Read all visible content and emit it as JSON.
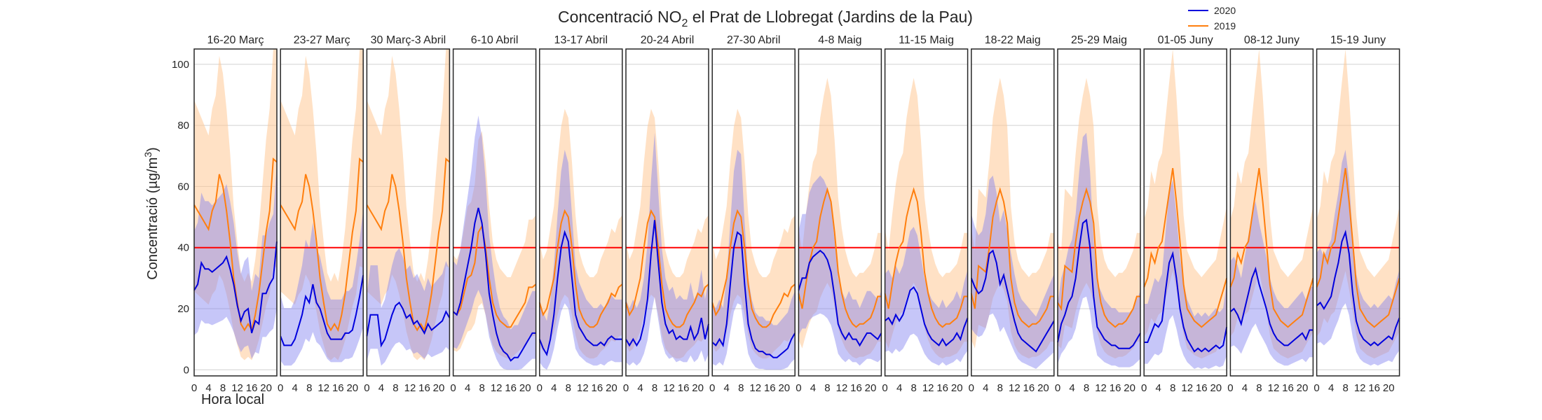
{
  "chart_data": {
    "type": "line",
    "title": "Concentració NO",
    "title_sub": "2",
    "title_rest": " el Prat de Llobregat (Jardins de la Pau)",
    "ylabel": "Concentració (µg/m",
    "ylabel_sup": "3",
    "ylabel_close": ")",
    "xlabel": "Hora local",
    "ylim": [
      -2,
      105
    ],
    "xlim": [
      0,
      23
    ],
    "yticks": [
      0,
      20,
      40,
      60,
      80,
      100
    ],
    "xticks": [
      0,
      4,
      8,
      12,
      16,
      20
    ],
    "xtick_labels": [
      "0",
      "4",
      "8",
      "12",
      "16",
      "20"
    ],
    "limit_value": 40,
    "limit_color": "#ff0000",
    "grid": true,
    "legend_position": "top-right",
    "series": [
      {
        "name": "2020",
        "color": "#0000dd",
        "band_color": "#8080f0"
      },
      {
        "name": "2019",
        "color": "#ff7f0e",
        "band_color": "#ffc896"
      }
    ],
    "panels": [
      {
        "title": "16-20 Març",
        "y2020": [
          26,
          28,
          35,
          33,
          33,
          32,
          33,
          34,
          35,
          37,
          33,
          28,
          21,
          16,
          19,
          20,
          12,
          16,
          15,
          25,
          25,
          28,
          30,
          42
        ],
        "y2019": [
          54,
          52,
          50,
          48,
          46,
          52,
          55,
          64,
          60,
          52,
          42,
          30,
          22,
          15,
          13,
          15,
          13,
          18,
          25,
          35,
          45,
          52,
          69,
          68
        ]
      },
      {
        "title": "23-27 Març",
        "y2020": [
          11,
          8,
          8,
          8,
          10,
          14,
          18,
          24,
          22,
          28,
          22,
          20,
          16,
          12,
          10,
          10,
          10,
          10,
          12,
          12,
          13,
          18,
          24,
          31
        ],
        "y2019": [
          54,
          52,
          50,
          48,
          46,
          52,
          55,
          64,
          60,
          52,
          42,
          30,
          22,
          15,
          13,
          15,
          13,
          18,
          25,
          35,
          45,
          52,
          69,
          68
        ]
      },
      {
        "title": "30 Març-3 Abril",
        "y2020": [
          11,
          18,
          18,
          18,
          8,
          10,
          14,
          18,
          21,
          22,
          20,
          17,
          18,
          15,
          16,
          14,
          12,
          15,
          13,
          14,
          15,
          16,
          19,
          17
        ],
        "y2019": [
          54,
          52,
          50,
          48,
          46,
          52,
          55,
          64,
          60,
          52,
          42,
          30,
          22,
          15,
          13,
          15,
          13,
          18,
          25,
          35,
          45,
          52,
          69,
          68
        ]
      },
      {
        "title": "6-10 Abril",
        "y2020": [
          19,
          18,
          22,
          28,
          34,
          40,
          48,
          53,
          48,
          38,
          25,
          18,
          12,
          8,
          6,
          5,
          3,
          4,
          4,
          6,
          8,
          10,
          12,
          12
        ],
        "y2019": [
          19,
          18,
          20,
          25,
          30,
          31,
          35,
          45,
          47,
          40,
          30,
          22,
          18,
          16,
          15,
          14,
          14,
          16,
          18,
          20,
          22,
          27,
          27,
          28
        ]
      },
      {
        "title": "13-17 Abril",
        "y2020": [
          10,
          7,
          5,
          10,
          18,
          30,
          40,
          45,
          42,
          30,
          18,
          14,
          12,
          10,
          9,
          8,
          8,
          9,
          8,
          10,
          11,
          10,
          10,
          10
        ],
        "y2019": [
          22,
          18,
          20,
          25,
          30,
          40,
          48,
          52,
          50,
          40,
          28,
          20,
          17,
          15,
          14,
          14,
          15,
          18,
          20,
          22,
          25,
          24,
          27,
          28
        ]
      },
      {
        "title": "20-24 Abril",
        "y2020": [
          10,
          8,
          10,
          8,
          10,
          15,
          23,
          38,
          49,
          35,
          22,
          15,
          12,
          13,
          10,
          11,
          10,
          10,
          14,
          10,
          12,
          17,
          10,
          15
        ],
        "y2019": [
          22,
          18,
          20,
          25,
          30,
          40,
          48,
          52,
          50,
          40,
          28,
          20,
          17,
          15,
          14,
          14,
          15,
          18,
          20,
          22,
          25,
          24,
          27,
          28
        ]
      },
      {
        "title": "27-30 Abril",
        "y2020": [
          9,
          8,
          10,
          8,
          15,
          28,
          40,
          45,
          44,
          28,
          15,
          10,
          7,
          6,
          6,
          5,
          5,
          4,
          4,
          5,
          6,
          7,
          10,
          12
        ],
        "y2019": [
          22,
          18,
          20,
          25,
          30,
          40,
          48,
          52,
          50,
          40,
          28,
          20,
          17,
          15,
          14,
          14,
          15,
          18,
          20,
          22,
          25,
          24,
          27,
          28
        ]
      },
      {
        "title": "4-8 Maig",
        "y2020": [
          26,
          30,
          30,
          35,
          37,
          38,
          39,
          38,
          36,
          32,
          24,
          15,
          12,
          10,
          12,
          10,
          10,
          8,
          10,
          12,
          12,
          11,
          10,
          12
        ],
        "y2019": [
          25,
          20,
          28,
          35,
          40,
          42,
          50,
          55,
          59,
          55,
          45,
          32,
          25,
          20,
          17,
          15,
          14,
          15,
          15,
          16,
          17,
          20,
          24,
          24
        ]
      },
      {
        "title": "11-15 Maig",
        "y2020": [
          16,
          17,
          15,
          18,
          16,
          18,
          22,
          26,
          27,
          25,
          20,
          15,
          12,
          10,
          9,
          8,
          10,
          8,
          9,
          10,
          12,
          10,
          14,
          17
        ],
        "y2019": [
          25,
          20,
          28,
          35,
          40,
          42,
          50,
          55,
          59,
          55,
          45,
          32,
          25,
          20,
          17,
          15,
          14,
          15,
          15,
          16,
          17,
          20,
          24,
          24
        ]
      },
      {
        "title": "18-22 Maig",
        "y2020": [
          30,
          27,
          25,
          26,
          30,
          38,
          39,
          35,
          28,
          31,
          26,
          21,
          16,
          12,
          10,
          9,
          8,
          7,
          6,
          8,
          10,
          12,
          14,
          16
        ],
        "y2019": [
          25,
          20,
          34,
          33,
          32,
          40,
          50,
          55,
          59,
          55,
          48,
          30,
          22,
          18,
          16,
          15,
          14,
          15,
          15,
          16,
          18,
          20,
          24,
          24
        ]
      },
      {
        "title": "25-29 Maig",
        "y2020": [
          9,
          15,
          18,
          22,
          24,
          30,
          40,
          48,
          49,
          40,
          24,
          14,
          12,
          10,
          9,
          8,
          8,
          7,
          7,
          7,
          7,
          8,
          10,
          12
        ],
        "y2019": [
          22,
          20,
          34,
          33,
          32,
          42,
          50,
          55,
          59,
          55,
          48,
          30,
          22,
          18,
          16,
          15,
          14,
          15,
          15,
          16,
          18,
          20,
          24,
          24
        ]
      },
      {
        "title": "01-05 Juny",
        "y2020": [
          9,
          9,
          12,
          15,
          14,
          16,
          26,
          35,
          38,
          30,
          20,
          14,
          10,
          8,
          6,
          7,
          6,
          7,
          6,
          7,
          8,
          7,
          8,
          14
        ],
        "y2019": [
          27,
          30,
          38,
          35,
          40,
          42,
          50,
          58,
          66,
          55,
          42,
          28,
          20,
          18,
          16,
          15,
          14,
          15,
          16,
          17,
          18,
          22,
          26,
          30
        ]
      },
      {
        "title": "08-12 Juny",
        "y2020": [
          19,
          20,
          18,
          15,
          20,
          25,
          30,
          33,
          28,
          24,
          20,
          15,
          12,
          10,
          9,
          8,
          8,
          9,
          10,
          11,
          12,
          10,
          13,
          13
        ],
        "y2019": [
          27,
          30,
          38,
          35,
          40,
          42,
          50,
          58,
          66,
          55,
          42,
          28,
          20,
          18,
          16,
          15,
          14,
          15,
          16,
          17,
          18,
          22,
          26,
          30
        ]
      },
      {
        "title": "15-19 Juny",
        "y2020": [
          21,
          22,
          20,
          22,
          24,
          30,
          35,
          42,
          45,
          38,
          25,
          16,
          12,
          10,
          9,
          8,
          9,
          8,
          9,
          10,
          11,
          10,
          14,
          17
        ],
        "y2019": [
          27,
          30,
          38,
          35,
          40,
          42,
          50,
          58,
          66,
          55,
          42,
          28,
          20,
          18,
          16,
          15,
          14,
          15,
          16,
          17,
          18,
          22,
          26,
          30
        ]
      }
    ]
  }
}
